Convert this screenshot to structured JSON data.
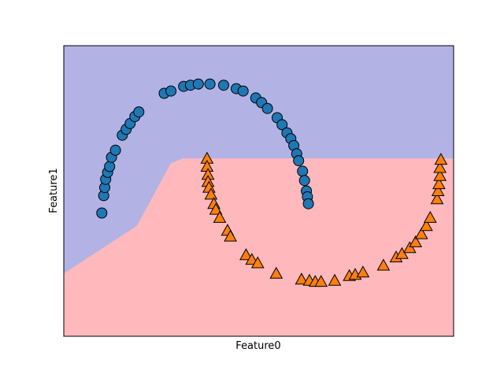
{
  "chart_data": {
    "type": "scatter",
    "title": "",
    "xlabel": "Feature0",
    "ylabel": "Feature1",
    "xlim": [
      -1.5,
      2.5
    ],
    "ylim": [
      -1.0,
      1.5
    ],
    "grid": false,
    "legend": "none",
    "ticks_visible": false,
    "decision_regions": {
      "description": "blue region above boundary, pink region below",
      "colors": {
        "upper": "#b2b2e5",
        "lower": "#ffb9bd"
      },
      "boundary": [
        [
          -1.5,
          -0.46
        ],
        [
          -0.75,
          -0.05
        ],
        [
          -0.4,
          0.49
        ],
        [
          -0.28,
          0.53
        ],
        [
          2.5,
          0.53
        ]
      ]
    },
    "series": [
      {
        "marker": "circle",
        "color": "#1f77b4",
        "points": [
          [
            -1.11,
            0.06
          ],
          [
            -1.09,
            0.21
          ],
          [
            -1.08,
            0.28
          ],
          [
            -1.07,
            0.35
          ],
          [
            -1.05,
            0.41
          ],
          [
            -1.03,
            0.46
          ],
          [
            -1.01,
            0.54
          ],
          [
            -0.97,
            0.6
          ],
          [
            -0.9,
            0.73
          ],
          [
            -0.86,
            0.78
          ],
          [
            -0.82,
            0.83
          ],
          [
            -0.77,
            0.89
          ],
          [
            -0.73,
            0.93
          ],
          [
            -0.47,
            1.09
          ],
          [
            -0.4,
            1.11
          ],
          [
            -0.27,
            1.15
          ],
          [
            -0.2,
            1.16
          ],
          [
            -0.12,
            1.17
          ],
          [
            0.0,
            1.17
          ],
          [
            0.14,
            1.16
          ],
          [
            0.27,
            1.13
          ],
          [
            0.34,
            1.11
          ],
          [
            0.47,
            1.05
          ],
          [
            0.53,
            1.01
          ],
          [
            0.59,
            0.96
          ],
          [
            0.69,
            0.88
          ],
          [
            0.74,
            0.82
          ],
          [
            0.79,
            0.75
          ],
          [
            0.83,
            0.7
          ],
          [
            0.86,
            0.64
          ],
          [
            0.89,
            0.57
          ],
          [
            0.91,
            0.51
          ],
          [
            0.95,
            0.42
          ],
          [
            0.97,
            0.34
          ],
          [
            0.99,
            0.25
          ],
          [
            1.0,
            0.2
          ],
          [
            1.01,
            0.14
          ]
        ]
      },
      {
        "marker": "triangle",
        "color": "#ff7f0e",
        "points": [
          [
            -0.03,
            0.53
          ],
          [
            -0.03,
            0.46
          ],
          [
            -0.02,
            0.39
          ],
          [
            -0.02,
            0.33
          ],
          [
            -0.01,
            0.28
          ],
          [
            0.01,
            0.22
          ],
          [
            0.04,
            0.14
          ],
          [
            0.06,
            0.09
          ],
          [
            0.1,
            0.02
          ],
          [
            0.18,
            -0.09
          ],
          [
            0.21,
            -0.14
          ],
          [
            0.37,
            -0.3
          ],
          [
            0.43,
            -0.34
          ],
          [
            0.49,
            -0.37
          ],
          [
            0.68,
            -0.46
          ],
          [
            0.94,
            -0.51
          ],
          [
            1.02,
            -0.52
          ],
          [
            1.08,
            -0.53
          ],
          [
            1.14,
            -0.53
          ],
          [
            1.28,
            -0.52
          ],
          [
            1.43,
            -0.48
          ],
          [
            1.49,
            -0.47
          ],
          [
            1.57,
            -0.45
          ],
          [
            1.78,
            -0.39
          ],
          [
            1.91,
            -0.32
          ],
          [
            1.97,
            -0.29
          ],
          [
            2.05,
            -0.24
          ],
          [
            2.11,
            -0.19
          ],
          [
            2.17,
            -0.12
          ],
          [
            2.22,
            -0.05
          ],
          [
            2.26,
            0.02
          ],
          [
            2.33,
            0.18
          ],
          [
            2.34,
            0.25
          ],
          [
            2.35,
            0.31
          ],
          [
            2.36,
            0.38
          ],
          [
            2.36,
            0.45
          ],
          [
            2.37,
            0.52
          ]
        ]
      }
    ]
  }
}
